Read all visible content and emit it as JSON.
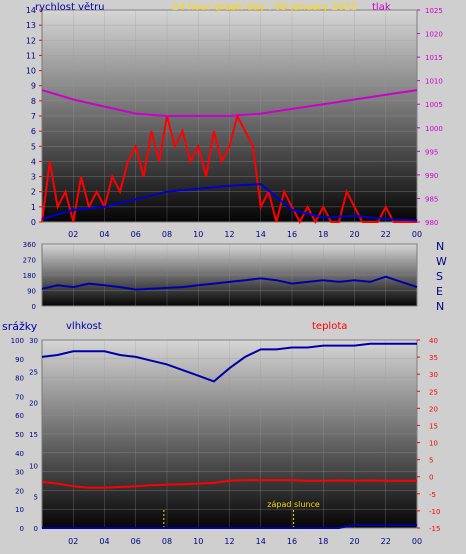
{
  "header": {
    "title": "24 hour graph day : 09 January 2022",
    "wind_label": "rychlost větru",
    "pressure_label": "tlak"
  },
  "lower": {
    "rain_label": "srážky",
    "humidity_label": "vlhkost",
    "temp_label": "teplota",
    "sunset_label": "západ slunce"
  },
  "directions": [
    "N",
    "W",
    "S",
    "E",
    "N"
  ],
  "colors": {
    "wind": "#ff0000",
    "wind_avg": "#0000cc",
    "pressure": "#cc00cc",
    "direction": "#0000aa",
    "humidity": "#0000aa",
    "temperature": "#ff0000",
    "rain": "#0000aa",
    "frame_bg": "#cfcfcf",
    "tick_text": "#000080"
  },
  "chart_data": [
    {
      "type": "line",
      "id": "wind_pressure",
      "x_ticks": [
        "02",
        "04",
        "06",
        "08",
        "10",
        "12",
        "14",
        "16",
        "18",
        "20",
        "22",
        "00"
      ],
      "y_left_ticks": [
        0,
        1,
        2,
        3,
        4,
        5,
        6,
        7,
        8,
        9,
        10,
        11,
        12,
        13,
        14
      ],
      "y_right_ticks": [
        980,
        985,
        990,
        995,
        1000,
        1005,
        1010,
        1015,
        1020,
        1025
      ],
      "ylim_left": [
        0,
        14
      ],
      "ylim_right": [
        980,
        1025
      ],
      "xlim": [
        0,
        24
      ],
      "series": [
        {
          "name": "rychlost větru",
          "axis": "left",
          "x": [
            0,
            0.5,
            1,
            1.5,
            2,
            2.5,
            3,
            3.5,
            4,
            4.5,
            5,
            5.5,
            6,
            6.5,
            7,
            7.5,
            8,
            8.5,
            9,
            9.5,
            10,
            10.5,
            11,
            11.5,
            12,
            12.5,
            13,
            13.5,
            14,
            14.5,
            15,
            15.5,
            16,
            16.5,
            17,
            17.5,
            18,
            18.5,
            19,
            19.5,
            20,
            20.5,
            21,
            21.5,
            22,
            22.5,
            23,
            23.5,
            24
          ],
          "values": [
            0,
            4,
            1,
            2,
            0,
            3,
            1,
            2,
            1,
            3,
            2,
            4,
            5,
            3,
            6,
            4,
            7,
            5,
            6,
            4,
            5,
            3,
            6,
            4,
            5,
            7,
            6,
            5,
            1,
            2,
            0,
            2,
            1,
            0,
            1,
            0,
            1,
            0,
            0,
            2,
            1,
            0,
            0,
            0,
            1,
            0,
            0,
            0,
            0
          ]
        },
        {
          "name": "wind average",
          "axis": "left",
          "x": [
            0,
            2,
            4,
            6,
            8,
            10,
            12,
            14,
            16,
            18,
            20,
            22,
            24
          ],
          "values": [
            0.2,
            0.8,
            1.0,
            1.5,
            2.0,
            2.2,
            2.4,
            2.5,
            0.8,
            0.3,
            0.4,
            0.2,
            0.1
          ]
        },
        {
          "name": "tlak",
          "axis": "right",
          "x": [
            0,
            2,
            4,
            6,
            8,
            10,
            12,
            14,
            16,
            18,
            20,
            22,
            24
          ],
          "values": [
            1008,
            1006,
            1004.5,
            1003,
            1002.5,
            1002.5,
            1002.5,
            1003,
            1004,
            1005,
            1006,
            1007,
            1008
          ]
        }
      ]
    },
    {
      "type": "line",
      "id": "wind_direction",
      "y_ticks": [
        0,
        90,
        180,
        270,
        360
      ],
      "ylim": [
        0,
        360
      ],
      "xlim": [
        0,
        24
      ],
      "series": [
        {
          "name": "direction",
          "x": [
            0,
            1,
            2,
            3,
            4,
            5,
            6,
            7,
            8,
            9,
            10,
            11,
            12,
            13,
            14,
            15,
            16,
            17,
            18,
            19,
            20,
            21,
            22,
            23,
            24
          ],
          "values": [
            100,
            120,
            110,
            130,
            120,
            110,
            95,
            100,
            105,
            110,
            120,
            130,
            140,
            150,
            160,
            150,
            130,
            140,
            150,
            140,
            150,
            140,
            170,
            140,
            110
          ]
        }
      ]
    },
    {
      "type": "line",
      "id": "humidity_temp",
      "x_ticks": [
        "02",
        "04",
        "06",
        "08",
        "10",
        "12",
        "14",
        "16",
        "18",
        "20",
        "22",
        "00"
      ],
      "y_rain_ticks": [
        0,
        5,
        10,
        15,
        20,
        25,
        30
      ],
      "y_humidity_ticks": [
        0,
        10,
        20,
        30,
        40,
        50,
        60,
        70,
        80,
        90,
        100
      ],
      "y_temp_ticks": [
        -15,
        -10,
        -5,
        0,
        5,
        10,
        15,
        20,
        25,
        30,
        35,
        40
      ],
      "xlim": [
        0,
        24
      ],
      "series": [
        {
          "name": "vlhkost",
          "axis": "humidity",
          "x": [
            0,
            1,
            2,
            3,
            4,
            5,
            6,
            7,
            8,
            9,
            10,
            11,
            12,
            13,
            14,
            15,
            16,
            17,
            18,
            19,
            20,
            21,
            22,
            23,
            24
          ],
          "values": [
            91,
            92,
            94,
            94,
            94,
            92,
            91,
            89,
            87,
            84,
            81,
            78,
            85,
            91,
            95,
            95,
            96,
            96,
            97,
            97,
            97,
            98,
            98,
            98,
            98
          ]
        },
        {
          "name": "teplota",
          "axis": "temp",
          "x": [
            0,
            1,
            2,
            3,
            4,
            5,
            6,
            7,
            8,
            9,
            10,
            11,
            12,
            13,
            14,
            15,
            16,
            17,
            18,
            19,
            20,
            21,
            22,
            23,
            24
          ],
          "values": [
            -1.5,
            -2,
            -2.8,
            -3.2,
            -3.2,
            -3,
            -2.8,
            -2.5,
            -2.3,
            -2.2,
            -2,
            -1.8,
            -1.2,
            -1,
            -1,
            -1,
            -1,
            -1.2,
            -1.2,
            -1.1,
            -1.2,
            -1.1,
            -1.2,
            -1.2,
            -1.2
          ]
        },
        {
          "name": "srážky",
          "axis": "rain",
          "x": [
            0,
            19,
            20,
            21,
            22,
            23,
            24
          ],
          "values": [
            0,
            0,
            0.5,
            0.5,
            0.5,
            0.5,
            0.5
          ]
        }
      ],
      "markers": [
        {
          "x": 7.8,
          "label": ""
        },
        {
          "x": 16.1,
          "label": "západ slunce"
        }
      ]
    }
  ]
}
